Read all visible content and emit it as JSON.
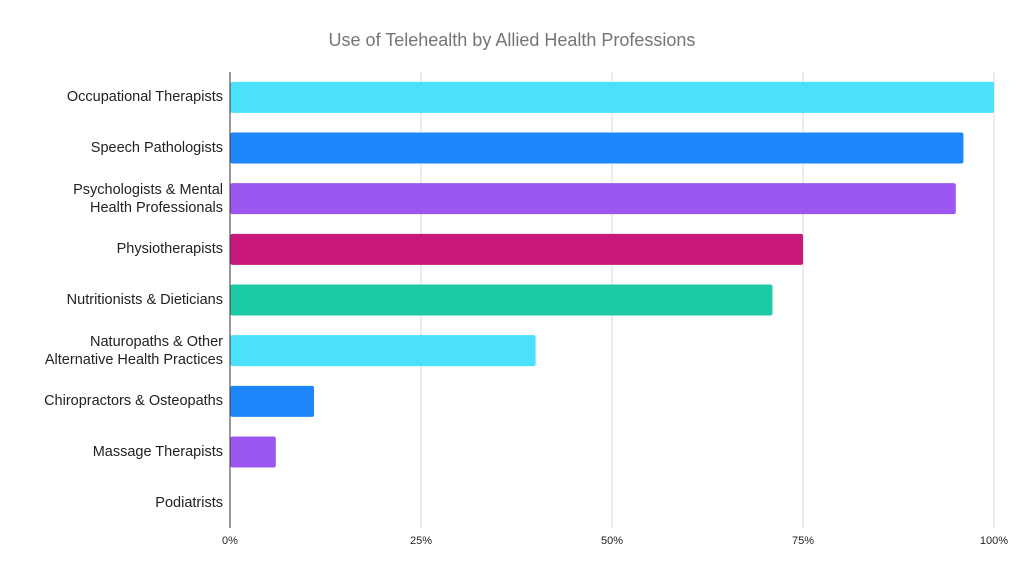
{
  "chart_data": {
    "type": "bar",
    "orientation": "horizontal",
    "title": "Use of Telehealth by Allied Health Professions",
    "xlabel": "",
    "ylabel": "",
    "xlim": [
      0,
      100
    ],
    "x_ticks": [
      "0%",
      "25%",
      "50%",
      "75%",
      "100%"
    ],
    "x_tick_values": [
      0,
      25,
      50,
      75,
      100
    ],
    "grid": true,
    "legend": "none",
    "categories": [
      "Occupational Therapists",
      "Speech Pathologists",
      "Psychologists & Mental\nHealth Professionals",
      "Physiotherapists",
      "Nutritionists & Dieticians",
      "Naturopaths & Other\nAlternative Health Practices",
      "Chiropractors & Osteopaths",
      "Massage Therapists",
      "Podiatrists"
    ],
    "values": [
      100,
      96,
      95,
      75,
      71,
      40,
      11,
      6,
      0
    ],
    "colors": [
      "#4be0fb",
      "#1f85fa",
      "#9b57ef",
      "#c8187c",
      "#1ccba4",
      "#4be0fb",
      "#1f85fa",
      "#9b57ef",
      "#c8187c"
    ]
  }
}
